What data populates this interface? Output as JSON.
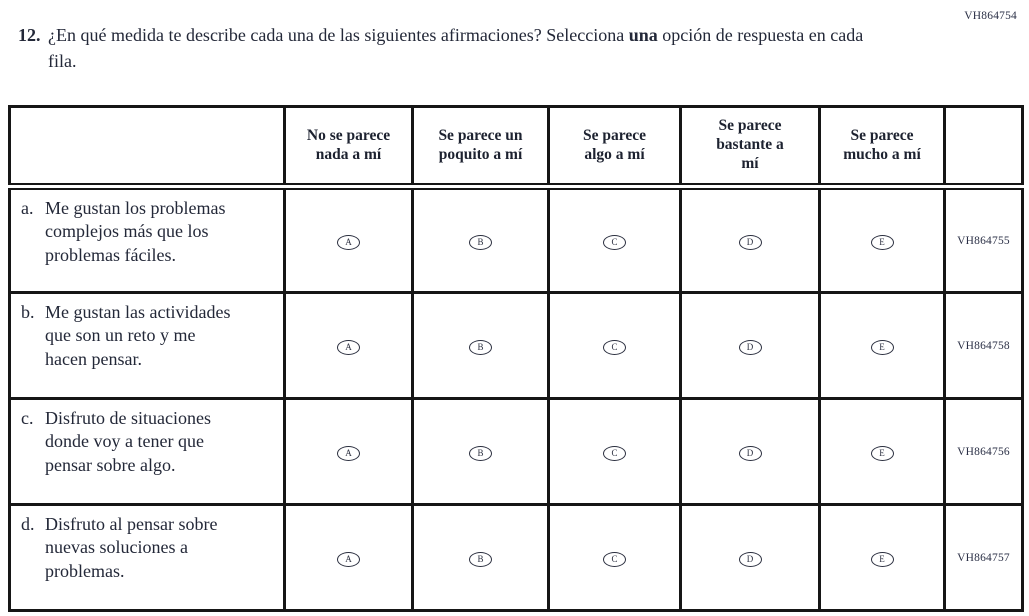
{
  "page": {
    "code_top_right": "VH864754"
  },
  "question": {
    "number": "12.",
    "text_before_bold": "¿En qué medida te describe cada una de las siguientes afirmaciones? Selecciona ",
    "bold_word": "una",
    "text_after_bold": " opción de respuesta en cada fila."
  },
  "table": {
    "columns": [
      "No se parece nada a mí",
      "Se parece un poquito a mí",
      "Se parece algo a mí",
      "Se parece bastante a mí",
      "Se parece mucho a mí"
    ],
    "options": [
      "A",
      "B",
      "C",
      "D",
      "E"
    ],
    "rows": [
      {
        "letter": "a.",
        "statement": "Me gustan los problemas complejos más que los problemas fáciles.",
        "code": "VH864755"
      },
      {
        "letter": "b.",
        "statement": "Me gustan las actividades que son un reto y me hacen pensar.",
        "code": "VH864758"
      },
      {
        "letter": "c.",
        "statement": "Disfruto de situaciones donde voy a tener que pensar sobre algo.",
        "code": "VH864756"
      },
      {
        "letter": "d.",
        "statement": "Disfruto al pensar sobre nuevas soluciones a problemas.",
        "code": "VH864757"
      }
    ]
  }
}
